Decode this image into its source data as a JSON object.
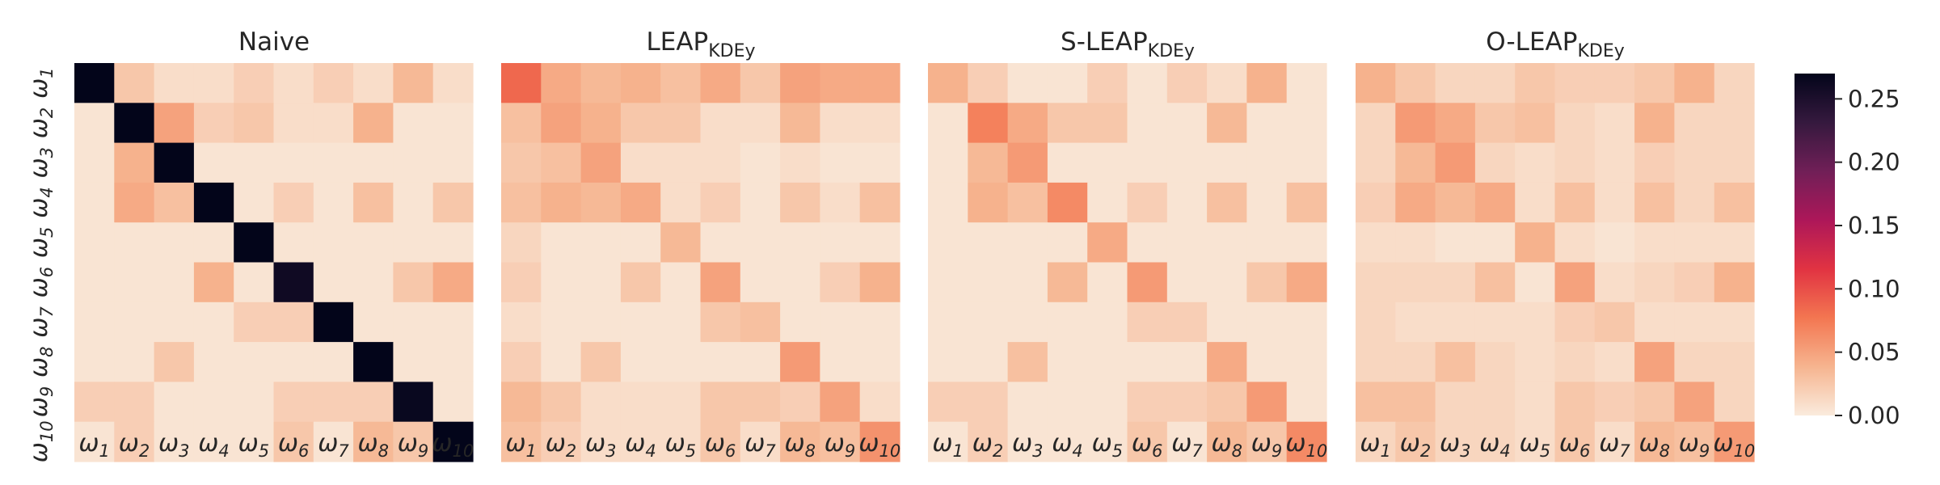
{
  "chart_data": [
    {
      "type": "heatmap",
      "title": "Naive",
      "title_main": "Naive",
      "title_sub": "",
      "row_labels": [
        "ω1",
        "ω2",
        "ω3",
        "ω4",
        "ω5",
        "ω6",
        "ω7",
        "ω8",
        "ω9",
        "ω10"
      ],
      "col_labels": [
        "ω1",
        "ω2",
        "ω3",
        "ω4",
        "ω5",
        "ω6",
        "ω7",
        "ω8",
        "ω9",
        "ω10"
      ],
      "values": [
        [
          0.27,
          0.025,
          0.01,
          0.01,
          0.02,
          0.01,
          0.02,
          0.01,
          0.035,
          0.01
        ],
        [
          0.005,
          0.27,
          0.05,
          0.02,
          0.025,
          0.01,
          0.01,
          0.04,
          0.005,
          0.005
        ],
        [
          0.005,
          0.04,
          0.27,
          0.005,
          0.005,
          0.005,
          0.005,
          0.005,
          0.005,
          0.005
        ],
        [
          0.005,
          0.045,
          0.03,
          0.27,
          0.005,
          0.02,
          0.005,
          0.03,
          0.005,
          0.025
        ],
        [
          0.005,
          0.005,
          0.005,
          0.005,
          0.27,
          0.005,
          0.005,
          0.005,
          0.005,
          0.005
        ],
        [
          0.005,
          0.005,
          0.005,
          0.04,
          0.005,
          0.26,
          0.005,
          0.005,
          0.025,
          0.045
        ],
        [
          0.005,
          0.005,
          0.005,
          0.005,
          0.02,
          0.02,
          0.27,
          0.005,
          0.005,
          0.005
        ],
        [
          0.005,
          0.005,
          0.025,
          0.005,
          0.005,
          0.005,
          0.005,
          0.27,
          0.005,
          0.005
        ],
        [
          0.02,
          0.02,
          0.005,
          0.005,
          0.005,
          0.02,
          0.02,
          0.02,
          0.265,
          0.005
        ],
        [
          0.005,
          0.02,
          0.005,
          0.005,
          0.005,
          0.025,
          0.005,
          0.035,
          0.025,
          0.27
        ]
      ]
    },
    {
      "type": "heatmap",
      "title": "LEAP_KDEy",
      "title_main": "LEAP",
      "title_sub": "KDEy",
      "row_labels": [
        "ω1",
        "ω2",
        "ω3",
        "ω4",
        "ω5",
        "ω6",
        "ω7",
        "ω8",
        "ω9",
        "ω10"
      ],
      "col_labels": [
        "ω1",
        "ω2",
        "ω3",
        "ω4",
        "ω5",
        "ω6",
        "ω7",
        "ω8",
        "ω9",
        "ω10"
      ],
      "values": [
        [
          0.085,
          0.045,
          0.035,
          0.04,
          0.03,
          0.045,
          0.025,
          0.05,
          0.045,
          0.045
        ],
        [
          0.03,
          0.05,
          0.04,
          0.025,
          0.025,
          0.01,
          0.01,
          0.035,
          0.01,
          0.01
        ],
        [
          0.025,
          0.03,
          0.05,
          0.01,
          0.01,
          0.01,
          0.005,
          0.01,
          0.005,
          0.005
        ],
        [
          0.03,
          0.04,
          0.035,
          0.045,
          0.01,
          0.02,
          0.005,
          0.025,
          0.01,
          0.03
        ],
        [
          0.015,
          0.005,
          0.005,
          0.005,
          0.035,
          0.005,
          0.005,
          0.005,
          0.005,
          0.005
        ],
        [
          0.02,
          0.005,
          0.005,
          0.025,
          0.005,
          0.05,
          0.005,
          0.005,
          0.02,
          0.04
        ],
        [
          0.01,
          0.005,
          0.005,
          0.005,
          0.005,
          0.025,
          0.03,
          0.005,
          0.005,
          0.005
        ],
        [
          0.02,
          0.005,
          0.025,
          0.005,
          0.005,
          0.005,
          0.005,
          0.055,
          0.005,
          0.005
        ],
        [
          0.035,
          0.025,
          0.01,
          0.01,
          0.01,
          0.025,
          0.025,
          0.02,
          0.05,
          0.01
        ],
        [
          0.03,
          0.02,
          0.01,
          0.01,
          0.01,
          0.025,
          0.01,
          0.035,
          0.03,
          0.06
        ]
      ]
    },
    {
      "type": "heatmap",
      "title": "S-LEAP_KDEy",
      "title_main": "S-LEAP",
      "title_sub": "KDEy",
      "row_labels": [
        "ω1",
        "ω2",
        "ω3",
        "ω4",
        "ω5",
        "ω6",
        "ω7",
        "ω8",
        "ω9",
        "ω10"
      ],
      "col_labels": [
        "ω1",
        "ω2",
        "ω3",
        "ω4",
        "ω5",
        "ω6",
        "ω7",
        "ω8",
        "ω9",
        "ω10"
      ],
      "values": [
        [
          0.04,
          0.02,
          0.005,
          0.005,
          0.02,
          0.005,
          0.02,
          0.01,
          0.04,
          0.005
        ],
        [
          0.005,
          0.07,
          0.045,
          0.025,
          0.025,
          0.005,
          0.005,
          0.035,
          0.005,
          0.005
        ],
        [
          0.005,
          0.035,
          0.055,
          0.005,
          0.005,
          0.005,
          0.005,
          0.005,
          0.005,
          0.005
        ],
        [
          0.005,
          0.04,
          0.03,
          0.065,
          0.005,
          0.02,
          0.005,
          0.03,
          0.005,
          0.03
        ],
        [
          0.005,
          0.005,
          0.005,
          0.005,
          0.045,
          0.005,
          0.005,
          0.005,
          0.005,
          0.005
        ],
        [
          0.005,
          0.005,
          0.005,
          0.035,
          0.005,
          0.055,
          0.005,
          0.005,
          0.025,
          0.045
        ],
        [
          0.005,
          0.005,
          0.005,
          0.005,
          0.005,
          0.02,
          0.02,
          0.005,
          0.005,
          0.005
        ],
        [
          0.005,
          0.005,
          0.03,
          0.005,
          0.005,
          0.005,
          0.005,
          0.045,
          0.005,
          0.005
        ],
        [
          0.02,
          0.02,
          0.005,
          0.005,
          0.005,
          0.02,
          0.02,
          0.025,
          0.055,
          0.005
        ],
        [
          0.005,
          0.02,
          0.005,
          0.005,
          0.005,
          0.025,
          0.005,
          0.035,
          0.025,
          0.065
        ]
      ]
    },
    {
      "type": "heatmap",
      "title": "O-LEAP_KDEy",
      "title_main": "O-LEAP",
      "title_sub": "KDEy",
      "row_labels": [
        "ω1",
        "ω2",
        "ω3",
        "ω4",
        "ω5",
        "ω6",
        "ω7",
        "ω8",
        "ω9",
        "ω10"
      ],
      "col_labels": [
        "ω1",
        "ω2",
        "ω3",
        "ω4",
        "ω5",
        "ω6",
        "ω7",
        "ω8",
        "ω9",
        "ω10"
      ],
      "values": [
        [
          0.04,
          0.025,
          0.015,
          0.015,
          0.025,
          0.02,
          0.02,
          0.025,
          0.04,
          0.015
        ],
        [
          0.015,
          0.055,
          0.045,
          0.025,
          0.03,
          0.015,
          0.01,
          0.04,
          0.015,
          0.015
        ],
        [
          0.015,
          0.035,
          0.055,
          0.015,
          0.01,
          0.015,
          0.01,
          0.02,
          0.015,
          0.015
        ],
        [
          0.02,
          0.045,
          0.035,
          0.045,
          0.01,
          0.03,
          0.01,
          0.03,
          0.015,
          0.03
        ],
        [
          0.01,
          0.01,
          0.005,
          0.005,
          0.04,
          0.01,
          0.005,
          0.01,
          0.01,
          0.01
        ],
        [
          0.015,
          0.015,
          0.015,
          0.03,
          0.005,
          0.05,
          0.01,
          0.015,
          0.02,
          0.04
        ],
        [
          0.015,
          0.01,
          0.01,
          0.01,
          0.01,
          0.02,
          0.025,
          0.01,
          0.01,
          0.01
        ],
        [
          0.015,
          0.015,
          0.03,
          0.015,
          0.01,
          0.015,
          0.01,
          0.05,
          0.015,
          0.015
        ],
        [
          0.03,
          0.03,
          0.015,
          0.015,
          0.01,
          0.025,
          0.02,
          0.025,
          0.05,
          0.015
        ],
        [
          0.015,
          0.025,
          0.015,
          0.015,
          0.01,
          0.025,
          0.01,
          0.035,
          0.03,
          0.055
        ]
      ]
    }
  ],
  "colorbar": {
    "vmin": 0.0,
    "vmax": 0.27,
    "ticks": [
      "0.00",
      "0.05",
      "0.10",
      "0.15",
      "0.20",
      "0.25"
    ],
    "tick_values": [
      0.0,
      0.05,
      0.1,
      0.15,
      0.2,
      0.25
    ],
    "colormap": "rocket_r",
    "colors": [
      "#faebdd",
      "#f6b48f",
      "#f37651",
      "#e13342",
      "#ad1759",
      "#701f57",
      "#35193e",
      "#03051a"
    ]
  }
}
